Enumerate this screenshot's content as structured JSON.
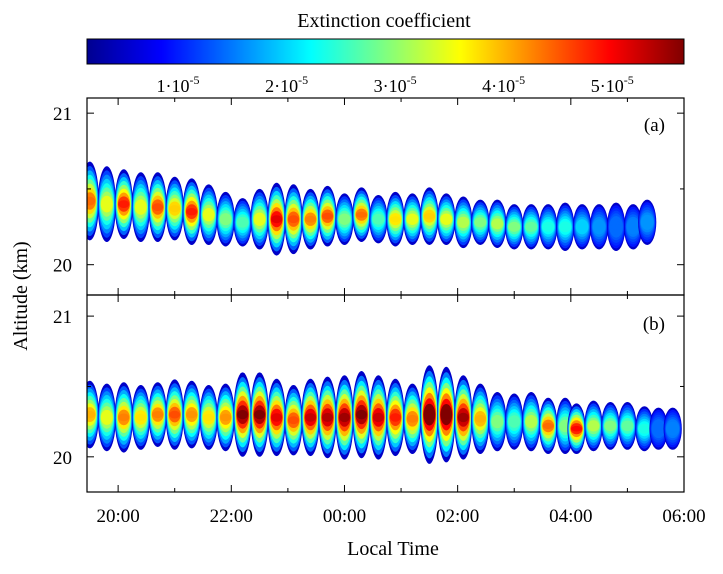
{
  "chart_data": {
    "type": "heatmap",
    "colorbar": {
      "title": "Extinction coefficient",
      "range": [
        0,
        5.5e-05
      ],
      "colormap": "jet",
      "ticks": [
        {
          "value": 1e-05,
          "base": "1·10",
          "exp": "-5"
        },
        {
          "value": 2e-05,
          "base": "2·10",
          "exp": "-5"
        },
        {
          "value": 3e-05,
          "base": "3·10",
          "exp": "-5"
        },
        {
          "value": 4e-05,
          "base": "4·10",
          "exp": "-5"
        },
        {
          "value": 5e-05,
          "base": "5·10",
          "exp": "-5"
        }
      ]
    },
    "xlabel": "Local Time",
    "ylabel": "Altitude (km)",
    "x_ticks": [
      "20:00",
      "22:00",
      "00:00",
      "02:00",
      "04:00",
      "06:00"
    ],
    "xlim_hours_since_20": [
      -0.55,
      10.0
    ],
    "panels": [
      {
        "label": "(a)",
        "ylim": [
          19.8,
          21.1
        ],
        "y_ticks": [
          20,
          21
        ],
        "columns": [
          {
            "t": -0.5,
            "c": 20.42,
            "h": 0.52,
            "v": 0.72
          },
          {
            "t": -0.2,
            "c": 20.4,
            "h": 0.5,
            "v": 0.55
          },
          {
            "t": 0.1,
            "c": 20.4,
            "h": 0.46,
            "v": 0.8
          },
          {
            "t": 0.4,
            "c": 20.38,
            "h": 0.46,
            "v": 0.55
          },
          {
            "t": 0.7,
            "c": 20.38,
            "h": 0.46,
            "v": 0.75
          },
          {
            "t": 1.0,
            "c": 20.37,
            "h": 0.42,
            "v": 0.62
          },
          {
            "t": 1.3,
            "c": 20.35,
            "h": 0.44,
            "v": 0.8
          },
          {
            "t": 1.6,
            "c": 20.33,
            "h": 0.4,
            "v": 0.55
          },
          {
            "t": 1.9,
            "c": 20.3,
            "h": 0.36,
            "v": 0.45
          },
          {
            "t": 2.2,
            "c": 20.28,
            "h": 0.32,
            "v": 0.4
          },
          {
            "t": 2.5,
            "c": 20.3,
            "h": 0.4,
            "v": 0.55
          },
          {
            "t": 2.8,
            "c": 20.3,
            "h": 0.48,
            "v": 0.85
          },
          {
            "t": 3.1,
            "c": 20.3,
            "h": 0.46,
            "v": 0.75
          },
          {
            "t": 3.4,
            "c": 20.3,
            "h": 0.4,
            "v": 0.7
          },
          {
            "t": 3.7,
            "c": 20.32,
            "h": 0.4,
            "v": 0.75
          },
          {
            "t": 4.0,
            "c": 20.3,
            "h": 0.34,
            "v": 0.45
          },
          {
            "t": 4.3,
            "c": 20.33,
            "h": 0.36,
            "v": 0.72
          },
          {
            "t": 4.6,
            "c": 20.3,
            "h": 0.32,
            "v": 0.4
          },
          {
            "t": 4.9,
            "c": 20.3,
            "h": 0.36,
            "v": 0.6
          },
          {
            "t": 5.2,
            "c": 20.3,
            "h": 0.34,
            "v": 0.55
          },
          {
            "t": 5.5,
            "c": 20.32,
            "h": 0.38,
            "v": 0.62
          },
          {
            "t": 5.8,
            "c": 20.3,
            "h": 0.34,
            "v": 0.55
          },
          {
            "t": 6.1,
            "c": 20.28,
            "h": 0.34,
            "v": 0.5
          },
          {
            "t": 6.4,
            "c": 20.28,
            "h": 0.3,
            "v": 0.45
          },
          {
            "t": 6.7,
            "c": 20.27,
            "h": 0.32,
            "v": 0.5
          },
          {
            "t": 7.0,
            "c": 20.25,
            "h": 0.3,
            "v": 0.45
          },
          {
            "t": 7.3,
            "c": 20.25,
            "h": 0.3,
            "v": 0.42
          },
          {
            "t": 7.6,
            "c": 20.25,
            "h": 0.3,
            "v": 0.35
          },
          {
            "t": 7.9,
            "c": 20.25,
            "h": 0.32,
            "v": 0.35
          },
          {
            "t": 8.2,
            "c": 20.25,
            "h": 0.3,
            "v": 0.28
          },
          {
            "t": 8.5,
            "c": 20.25,
            "h": 0.3,
            "v": 0.22
          },
          {
            "t": 8.8,
            "c": 20.25,
            "h": 0.32,
            "v": 0.18
          },
          {
            "t": 9.1,
            "c": 20.25,
            "h": 0.3,
            "v": 0.2
          },
          {
            "t": 9.35,
            "c": 20.28,
            "h": 0.3,
            "v": 0.22
          }
        ]
      },
      {
        "label": "(b)",
        "ylim": [
          19.75,
          21.15
        ],
        "y_ticks": [
          20,
          21
        ],
        "columns": [
          {
            "t": -0.5,
            "c": 20.3,
            "h": 0.48,
            "v": 0.65
          },
          {
            "t": -0.2,
            "c": 20.28,
            "h": 0.48,
            "v": 0.55
          },
          {
            "t": 0.1,
            "c": 20.28,
            "h": 0.5,
            "v": 0.7
          },
          {
            "t": 0.4,
            "c": 20.28,
            "h": 0.46,
            "v": 0.6
          },
          {
            "t": 0.7,
            "c": 20.3,
            "h": 0.46,
            "v": 0.7
          },
          {
            "t": 1.0,
            "c": 20.3,
            "h": 0.5,
            "v": 0.75
          },
          {
            "t": 1.3,
            "c": 20.3,
            "h": 0.48,
            "v": 0.68
          },
          {
            "t": 1.6,
            "c": 20.28,
            "h": 0.46,
            "v": 0.6
          },
          {
            "t": 1.9,
            "c": 20.28,
            "h": 0.48,
            "v": 0.68
          },
          {
            "t": 2.2,
            "c": 20.3,
            "h": 0.6,
            "v": 0.95
          },
          {
            "t": 2.5,
            "c": 20.3,
            "h": 0.6,
            "v": 0.95
          },
          {
            "t": 2.8,
            "c": 20.28,
            "h": 0.55,
            "v": 0.85
          },
          {
            "t": 3.1,
            "c": 20.26,
            "h": 0.5,
            "v": 0.75
          },
          {
            "t": 3.4,
            "c": 20.28,
            "h": 0.55,
            "v": 0.88
          },
          {
            "t": 3.7,
            "c": 20.28,
            "h": 0.58,
            "v": 0.9
          },
          {
            "t": 4.0,
            "c": 20.28,
            "h": 0.6,
            "v": 0.92
          },
          {
            "t": 4.3,
            "c": 20.3,
            "h": 0.62,
            "v": 0.95
          },
          {
            "t": 4.6,
            "c": 20.28,
            "h": 0.6,
            "v": 0.88
          },
          {
            "t": 4.9,
            "c": 20.28,
            "h": 0.55,
            "v": 0.8
          },
          {
            "t": 5.2,
            "c": 20.27,
            "h": 0.5,
            "v": 0.7
          },
          {
            "t": 5.5,
            "c": 20.3,
            "h": 0.7,
            "v": 1.0
          },
          {
            "t": 5.8,
            "c": 20.3,
            "h": 0.68,
            "v": 1.0
          },
          {
            "t": 6.1,
            "c": 20.28,
            "h": 0.6,
            "v": 0.92
          },
          {
            "t": 6.4,
            "c": 20.27,
            "h": 0.5,
            "v": 0.65
          },
          {
            "t": 6.7,
            "c": 20.25,
            "h": 0.42,
            "v": 0.45
          },
          {
            "t": 7.0,
            "c": 20.25,
            "h": 0.4,
            "v": 0.4
          },
          {
            "t": 7.3,
            "c": 20.25,
            "h": 0.42,
            "v": 0.5
          },
          {
            "t": 7.6,
            "c": 20.22,
            "h": 0.4,
            "v": 0.72
          },
          {
            "t": 7.9,
            "c": 20.22,
            "h": 0.4,
            "v": 0.45
          },
          {
            "t": 8.1,
            "c": 20.2,
            "h": 0.36,
            "v": 0.82
          },
          {
            "t": 8.4,
            "c": 20.22,
            "h": 0.36,
            "v": 0.5
          },
          {
            "t": 8.7,
            "c": 20.22,
            "h": 0.34,
            "v": 0.45
          },
          {
            "t": 9.0,
            "c": 20.22,
            "h": 0.34,
            "v": 0.42
          },
          {
            "t": 9.3,
            "c": 20.2,
            "h": 0.32,
            "v": 0.35
          },
          {
            "t": 9.55,
            "c": 20.2,
            "h": 0.3,
            "v": 0.18
          },
          {
            "t": 9.8,
            "c": 20.2,
            "h": 0.3,
            "v": 0.2
          }
        ]
      }
    ]
  }
}
